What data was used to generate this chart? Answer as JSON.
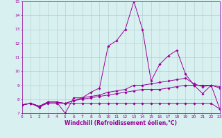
{
  "xlabel": "Windchill (Refroidissement éolien,°C)",
  "ylabel": "",
  "background_color": "#d8f0f0",
  "line_color": "#990099",
  "xmin": 0,
  "xmax": 23,
  "ymin": 7,
  "ymax": 15,
  "series": [
    {
      "x": [
        0,
        1,
        2,
        3,
        4,
        5,
        6,
        7,
        8,
        9,
        10,
        11,
        12,
        13,
        14,
        15,
        16,
        17,
        18,
        19,
        20,
        21,
        22,
        23
      ],
      "y": [
        7.6,
        7.7,
        7.4,
        7.8,
        7.8,
        7.0,
        8.1,
        8.1,
        8.5,
        8.8,
        11.8,
        12.2,
        13.0,
        15.0,
        13.0,
        9.3,
        10.5,
        11.1,
        11.5,
        9.8,
        9.0,
        8.4,
        9.0,
        7.3
      ]
    },
    {
      "x": [
        0,
        1,
        2,
        3,
        4,
        5,
        6,
        7,
        8,
        9,
        10,
        11,
        12,
        13,
        14,
        15,
        16,
        17,
        18,
        19,
        20,
        21,
        22,
        23
      ],
      "y": [
        7.6,
        7.7,
        7.5,
        7.8,
        7.8,
        7.7,
        7.9,
        8.1,
        8.2,
        8.3,
        8.5,
        8.6,
        8.7,
        9.0,
        9.0,
        9.1,
        9.2,
        9.3,
        9.4,
        9.5,
        9.1,
        8.9,
        9.0,
        8.9
      ]
    },
    {
      "x": [
        0,
        1,
        2,
        3,
        4,
        5,
        6,
        7,
        8,
        9,
        10,
        11,
        12,
        13,
        14,
        15,
        16,
        17,
        18,
        19,
        20,
        21,
        22,
        23
      ],
      "y": [
        7.6,
        7.7,
        7.5,
        7.8,
        7.8,
        7.7,
        7.9,
        8.0,
        8.1,
        8.2,
        8.3,
        8.4,
        8.5,
        8.6,
        8.7,
        8.7,
        8.7,
        8.8,
        8.9,
        9.0,
        9.0,
        9.0,
        9.0,
        8.8
      ]
    },
    {
      "x": [
        0,
        1,
        2,
        3,
        4,
        5,
        6,
        7,
        8,
        9,
        10,
        11,
        12,
        13,
        14,
        15,
        16,
        17,
        18,
        19,
        20,
        21,
        22,
        23
      ],
      "y": [
        7.6,
        7.7,
        7.5,
        7.7,
        7.7,
        7.7,
        7.7,
        7.7,
        7.7,
        7.7,
        7.7,
        7.7,
        7.7,
        7.7,
        7.7,
        7.7,
        7.7,
        7.7,
        7.7,
        7.7,
        7.7,
        7.7,
        7.7,
        7.3
      ]
    }
  ],
  "marker": "D",
  "markersize": 1.8,
  "linewidth": 0.7,
  "grid_color": "#aacccc",
  "tick_fontsize": 4.2,
  "label_fontsize": 5.5
}
